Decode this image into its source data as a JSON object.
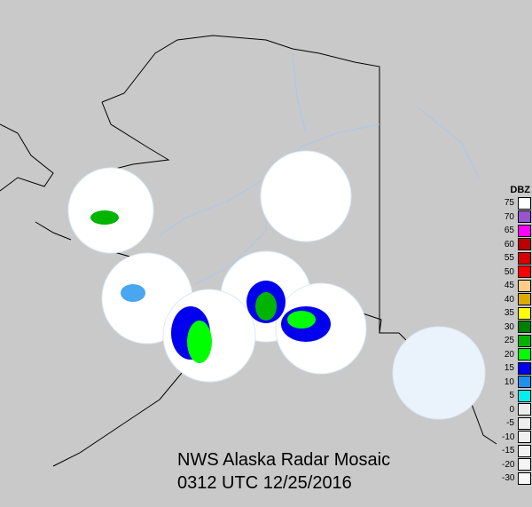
{
  "title": "NWS Alaska Radar Mosaic",
  "timestamp": "0312 UTC 12/25/2016",
  "legend": {
    "unit": "DBZ",
    "items": [
      {
        "label": "75",
        "color": "#ffffff"
      },
      {
        "label": "70",
        "color": "#9955cc"
      },
      {
        "label": "65",
        "color": "#ff00ff"
      },
      {
        "label": "60",
        "color": "#bb0000"
      },
      {
        "label": "55",
        "color": "#d80000"
      },
      {
        "label": "50",
        "color": "#ff0000"
      },
      {
        "label": "45",
        "color": "#ffcc88"
      },
      {
        "label": "40",
        "color": "#ddaa00"
      },
      {
        "label": "35",
        "color": "#ffff00"
      },
      {
        "label": "30",
        "color": "#008000"
      },
      {
        "label": "25",
        "color": "#00b400"
      },
      {
        "label": "20",
        "color": "#00ff00"
      },
      {
        "label": "15",
        "color": "#0000ee"
      },
      {
        "label": "10",
        "color": "#1e90ee"
      },
      {
        "label": "5",
        "color": "#00eeee"
      },
      {
        "label": "0",
        "color": "#ececec"
      },
      {
        "label": "-5",
        "color": "#eeeeee"
      },
      {
        "label": "-10",
        "color": "#f0f0f0"
      },
      {
        "label": "-15",
        "color": "#f2f2f2"
      },
      {
        "label": "-20",
        "color": "#f5f5f5"
      },
      {
        "label": "-30",
        "color": "#f8f8f8"
      }
    ]
  },
  "colors": {
    "background": "#c9c9c9",
    "land": "#c9c9c9",
    "coast": "#000000",
    "rivers": "#a8c8ee",
    "radar_coverage": "#ffffff"
  }
}
